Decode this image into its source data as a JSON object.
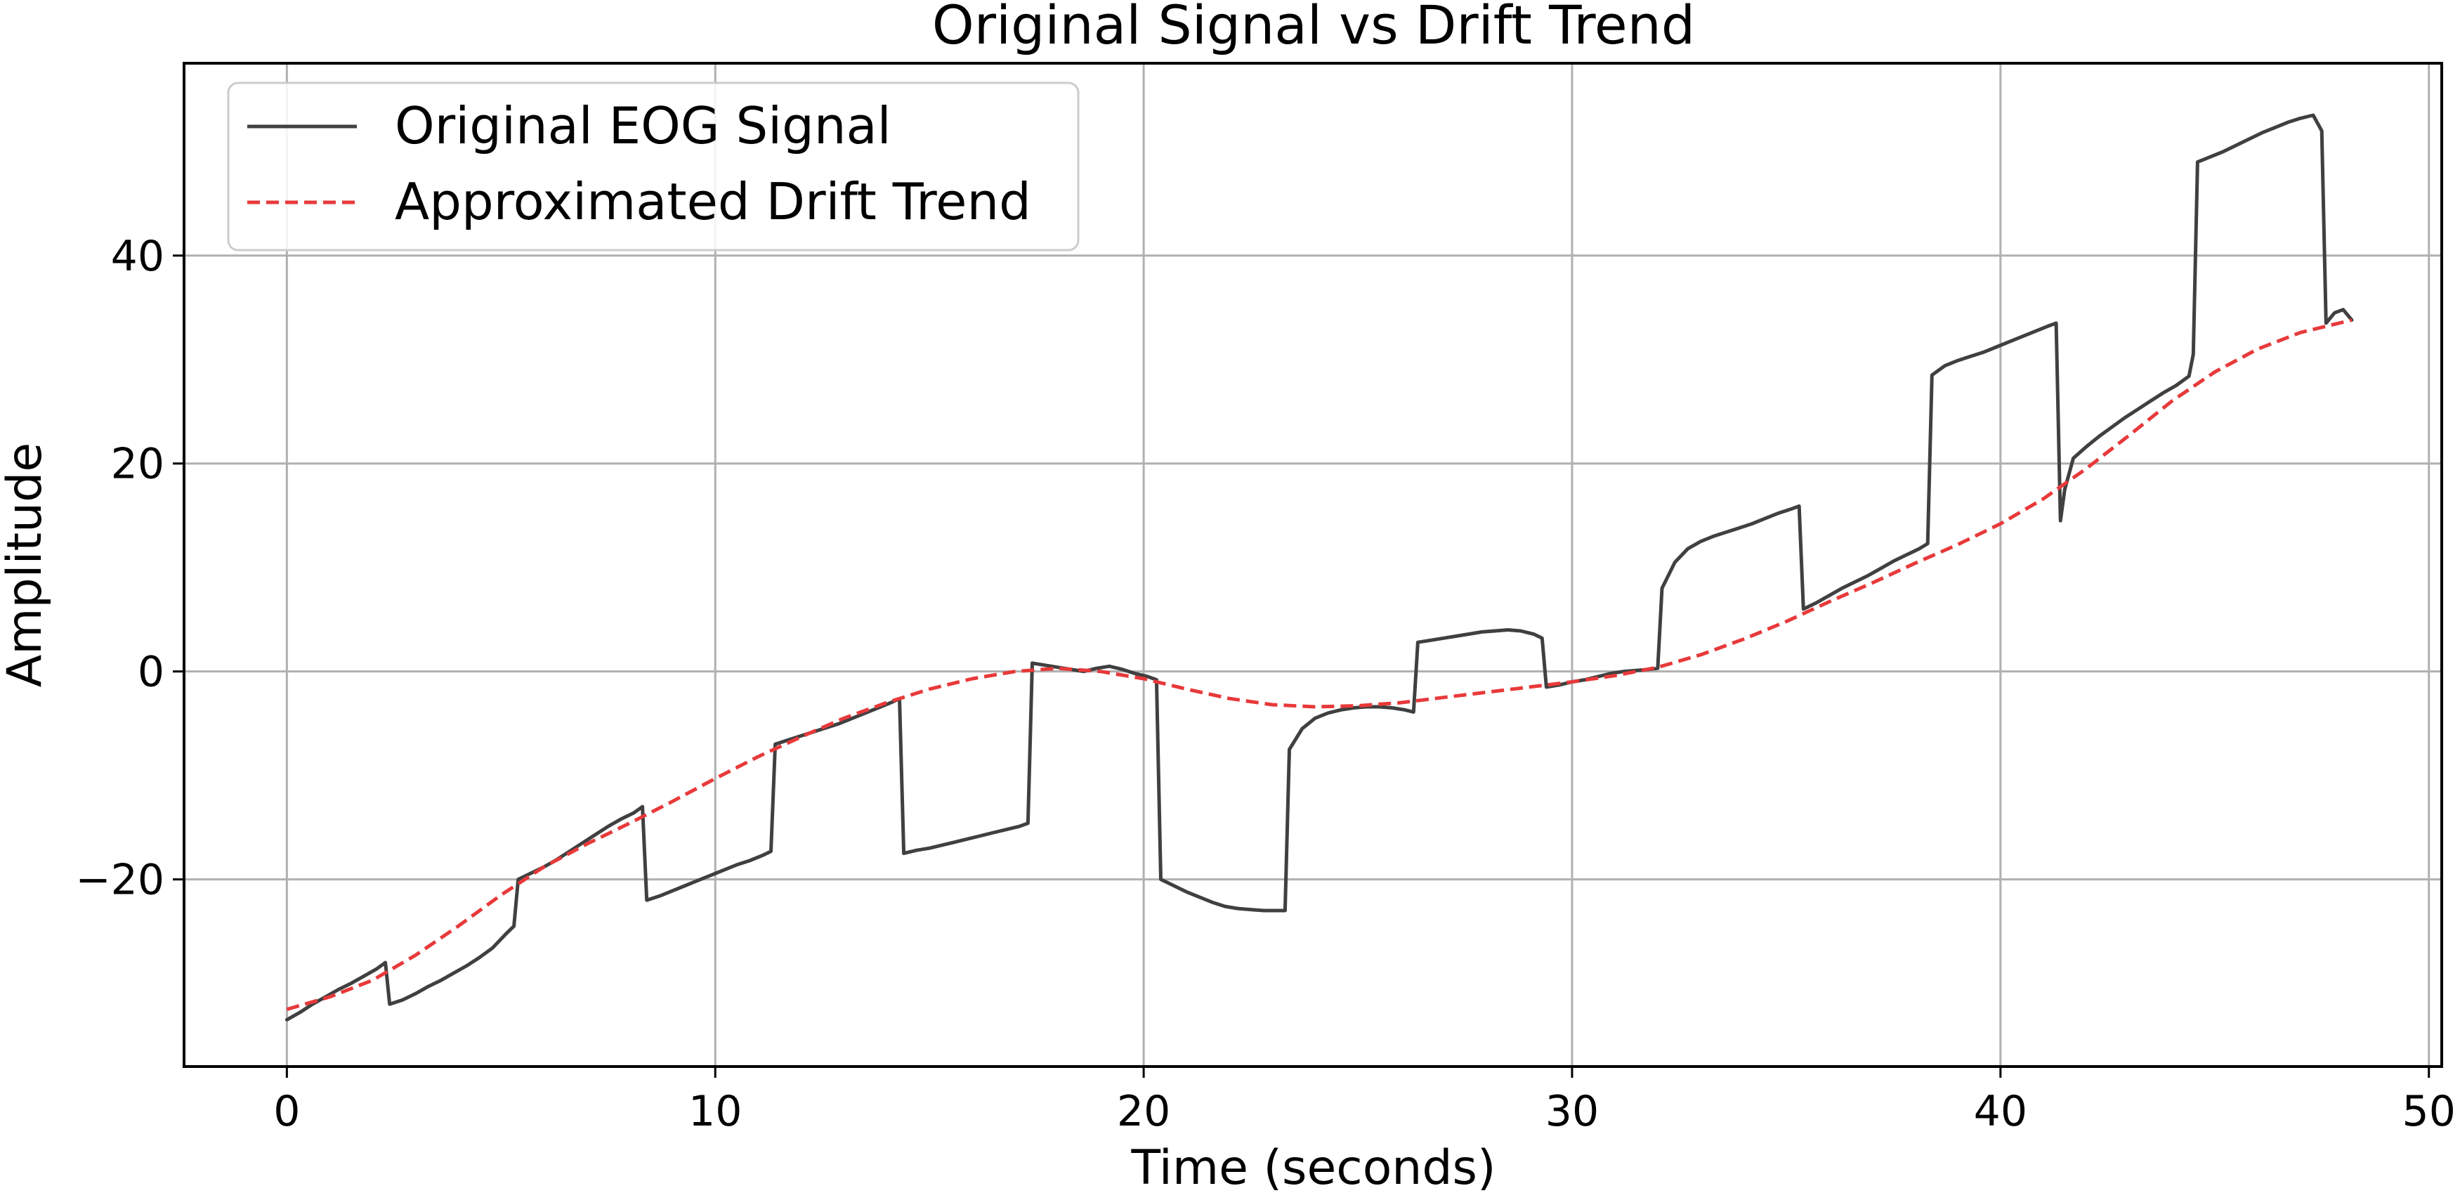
{
  "chart_data": {
    "type": "line",
    "title": "Original Signal vs Drift Trend",
    "xlabel": "Time (seconds)",
    "ylabel": "Amplitude",
    "xlim": [
      -2.4,
      50.3
    ],
    "ylim": [
      -38.0,
      58.5
    ],
    "x_ticks": [
      0,
      10,
      20,
      30,
      40,
      50
    ],
    "x_tick_labels": [
      "0",
      "10",
      "20",
      "30",
      "40",
      "50"
    ],
    "y_ticks": [
      -20,
      0,
      20,
      40
    ],
    "y_tick_labels": [
      "−20",
      "0",
      "20",
      "40"
    ],
    "grid": true,
    "legend_position": "top-left",
    "series": [
      {
        "name": "Original EOG Signal",
        "color": "#404040",
        "line_style": "solid",
        "points": [
          [
            0.0,
            -33.5
          ],
          [
            0.3,
            -32.8
          ],
          [
            0.6,
            -32.0
          ],
          [
            0.9,
            -31.3
          ],
          [
            1.2,
            -30.6
          ],
          [
            1.5,
            -30.0
          ],
          [
            1.8,
            -29.3
          ],
          [
            2.1,
            -28.6
          ],
          [
            2.3,
            -28.0
          ],
          [
            2.4,
            -32.0
          ],
          [
            2.7,
            -31.6
          ],
          [
            3.0,
            -31.0
          ],
          [
            3.3,
            -30.3
          ],
          [
            3.6,
            -29.7
          ],
          [
            3.9,
            -29.0
          ],
          [
            4.2,
            -28.3
          ],
          [
            4.5,
            -27.5
          ],
          [
            4.8,
            -26.6
          ],
          [
            5.1,
            -25.3
          ],
          [
            5.3,
            -24.5
          ],
          [
            5.4,
            -20.0
          ],
          [
            5.7,
            -19.4
          ],
          [
            6.0,
            -18.8
          ],
          [
            6.3,
            -18.1
          ],
          [
            6.6,
            -17.3
          ],
          [
            6.9,
            -16.5
          ],
          [
            7.2,
            -15.7
          ],
          [
            7.5,
            -14.9
          ],
          [
            7.8,
            -14.2
          ],
          [
            8.1,
            -13.6
          ],
          [
            8.3,
            -13.0
          ],
          [
            8.4,
            -22.0
          ],
          [
            8.7,
            -21.6
          ],
          [
            9.0,
            -21.1
          ],
          [
            9.3,
            -20.6
          ],
          [
            9.6,
            -20.1
          ],
          [
            9.9,
            -19.6
          ],
          [
            10.2,
            -19.1
          ],
          [
            10.5,
            -18.6
          ],
          [
            10.8,
            -18.2
          ],
          [
            11.1,
            -17.7
          ],
          [
            11.3,
            -17.3
          ],
          [
            11.4,
            -7.0
          ],
          [
            11.7,
            -6.6
          ],
          [
            12.0,
            -6.2
          ],
          [
            12.3,
            -5.8
          ],
          [
            12.6,
            -5.4
          ],
          [
            12.9,
            -5.0
          ],
          [
            13.2,
            -4.5
          ],
          [
            13.5,
            -4.0
          ],
          [
            13.8,
            -3.5
          ],
          [
            14.1,
            -3.0
          ],
          [
            14.3,
            -2.6
          ],
          [
            14.4,
            -17.5
          ],
          [
            14.7,
            -17.2
          ],
          [
            15.0,
            -17.0
          ],
          [
            15.3,
            -16.7
          ],
          [
            15.6,
            -16.4
          ],
          [
            15.9,
            -16.1
          ],
          [
            16.2,
            -15.8
          ],
          [
            16.5,
            -15.5
          ],
          [
            16.8,
            -15.2
          ],
          [
            17.1,
            -14.9
          ],
          [
            17.3,
            -14.6
          ],
          [
            17.4,
            0.8
          ],
          [
            17.7,
            0.6
          ],
          [
            18.0,
            0.4
          ],
          [
            18.3,
            0.2
          ],
          [
            18.6,
            0.0
          ],
          [
            18.9,
            0.3
          ],
          [
            19.2,
            0.5
          ],
          [
            19.5,
            0.2
          ],
          [
            19.8,
            -0.2
          ],
          [
            20.1,
            -0.5
          ],
          [
            20.3,
            -0.8
          ],
          [
            20.4,
            -20.0
          ],
          [
            20.7,
            -20.6
          ],
          [
            21.0,
            -21.2
          ],
          [
            21.3,
            -21.7
          ],
          [
            21.6,
            -22.2
          ],
          [
            21.9,
            -22.6
          ],
          [
            22.2,
            -22.8
          ],
          [
            22.5,
            -22.9
          ],
          [
            22.8,
            -23.0
          ],
          [
            23.1,
            -23.0
          ],
          [
            23.3,
            -23.0
          ],
          [
            23.4,
            -7.5
          ],
          [
            23.7,
            -5.5
          ],
          [
            24.0,
            -4.5
          ],
          [
            24.3,
            -4.0
          ],
          [
            24.6,
            -3.7
          ],
          [
            24.9,
            -3.5
          ],
          [
            25.2,
            -3.4
          ],
          [
            25.5,
            -3.4
          ],
          [
            25.8,
            -3.5
          ],
          [
            26.1,
            -3.7
          ],
          [
            26.3,
            -3.9
          ],
          [
            26.4,
            2.8
          ],
          [
            26.7,
            3.0
          ],
          [
            27.0,
            3.2
          ],
          [
            27.3,
            3.4
          ],
          [
            27.6,
            3.6
          ],
          [
            27.9,
            3.8
          ],
          [
            28.2,
            3.9
          ],
          [
            28.5,
            4.0
          ],
          [
            28.8,
            3.9
          ],
          [
            29.1,
            3.6
          ],
          [
            29.3,
            3.2
          ],
          [
            29.4,
            -1.5
          ],
          [
            29.7,
            -1.3
          ],
          [
            30.0,
            -1.0
          ],
          [
            30.3,
            -0.8
          ],
          [
            30.6,
            -0.5
          ],
          [
            30.9,
            -0.2
          ],
          [
            31.2,
            0.0
          ],
          [
            31.5,
            0.1
          ],
          [
            31.8,
            0.2
          ],
          [
            32.0,
            0.3
          ],
          [
            32.1,
            8.0
          ],
          [
            32.4,
            10.5
          ],
          [
            32.7,
            11.8
          ],
          [
            33.0,
            12.5
          ],
          [
            33.3,
            13.0
          ],
          [
            33.6,
            13.4
          ],
          [
            33.9,
            13.8
          ],
          [
            34.2,
            14.2
          ],
          [
            34.5,
            14.7
          ],
          [
            34.8,
            15.2
          ],
          [
            35.1,
            15.6
          ],
          [
            35.3,
            15.9
          ],
          [
            35.4,
            6.0
          ],
          [
            35.7,
            6.6
          ],
          [
            36.0,
            7.3
          ],
          [
            36.3,
            8.0
          ],
          [
            36.6,
            8.6
          ],
          [
            36.9,
            9.2
          ],
          [
            37.2,
            9.9
          ],
          [
            37.5,
            10.6
          ],
          [
            37.8,
            11.2
          ],
          [
            38.1,
            11.8
          ],
          [
            38.3,
            12.3
          ],
          [
            38.4,
            28.5
          ],
          [
            38.7,
            29.4
          ],
          [
            39.0,
            29.9
          ],
          [
            39.3,
            30.3
          ],
          [
            39.6,
            30.7
          ],
          [
            39.9,
            31.2
          ],
          [
            40.2,
            31.7
          ],
          [
            40.5,
            32.2
          ],
          [
            40.8,
            32.7
          ],
          [
            41.1,
            33.2
          ],
          [
            41.3,
            33.5
          ],
          [
            41.4,
            14.5
          ],
          [
            41.5,
            17.5
          ],
          [
            41.7,
            20.5
          ],
          [
            42.0,
            21.6
          ],
          [
            42.3,
            22.6
          ],
          [
            42.6,
            23.5
          ],
          [
            42.9,
            24.4
          ],
          [
            43.2,
            25.2
          ],
          [
            43.5,
            26.0
          ],
          [
            43.8,
            26.8
          ],
          [
            44.1,
            27.5
          ],
          [
            44.4,
            28.4
          ],
          [
            44.5,
            30.5
          ],
          [
            44.6,
            49.0
          ],
          [
            44.9,
            49.5
          ],
          [
            45.2,
            50.0
          ],
          [
            45.5,
            50.6
          ],
          [
            45.8,
            51.2
          ],
          [
            46.1,
            51.8
          ],
          [
            46.4,
            52.3
          ],
          [
            46.7,
            52.8
          ],
          [
            47.0,
            53.2
          ],
          [
            47.3,
            53.5
          ],
          [
            47.5,
            52.0
          ],
          [
            47.6,
            33.5
          ],
          [
            47.8,
            34.5
          ],
          [
            48.0,
            34.8
          ],
          [
            48.2,
            33.8
          ]
        ]
      },
      {
        "name": "Approximated Drift Trend",
        "color": "#e8393a",
        "line_style": "dashed",
        "points": [
          [
            0.0,
            -32.5
          ],
          [
            1.0,
            -31.3
          ],
          [
            2.0,
            -29.7
          ],
          [
            3.0,
            -27.3
          ],
          [
            4.0,
            -24.5
          ],
          [
            5.0,
            -21.5
          ],
          [
            6.0,
            -18.8
          ],
          [
            7.0,
            -16.6
          ],
          [
            8.0,
            -14.6
          ],
          [
            9.0,
            -12.5
          ],
          [
            10.0,
            -10.3
          ],
          [
            11.0,
            -8.2
          ],
          [
            12.0,
            -6.3
          ],
          [
            13.0,
            -4.5
          ],
          [
            14.0,
            -3.0
          ],
          [
            15.0,
            -1.7
          ],
          [
            16.0,
            -0.7
          ],
          [
            17.0,
            0.0
          ],
          [
            18.0,
            0.3
          ],
          [
            19.0,
            0.0
          ],
          [
            20.0,
            -0.7
          ],
          [
            21.0,
            -1.7
          ],
          [
            22.0,
            -2.6
          ],
          [
            23.0,
            -3.2
          ],
          [
            24.0,
            -3.4
          ],
          [
            25.0,
            -3.3
          ],
          [
            26.0,
            -3.0
          ],
          [
            27.0,
            -2.5
          ],
          [
            28.0,
            -2.0
          ],
          [
            29.0,
            -1.5
          ],
          [
            30.0,
            -1.0
          ],
          [
            31.0,
            -0.4
          ],
          [
            32.0,
            0.4
          ],
          [
            33.0,
            1.6
          ],
          [
            34.0,
            3.1
          ],
          [
            35.0,
            4.8
          ],
          [
            36.0,
            6.7
          ],
          [
            37.0,
            8.5
          ],
          [
            38.0,
            10.4
          ],
          [
            39.0,
            12.2
          ],
          [
            40.0,
            14.2
          ],
          [
            41.0,
            16.6
          ],
          [
            42.0,
            19.5
          ],
          [
            43.0,
            22.7
          ],
          [
            44.0,
            26.0
          ],
          [
            45.0,
            28.8
          ],
          [
            46.0,
            31.0
          ],
          [
            47.0,
            32.6
          ],
          [
            48.0,
            33.6
          ],
          [
            48.2,
            33.8
          ]
        ]
      }
    ]
  }
}
